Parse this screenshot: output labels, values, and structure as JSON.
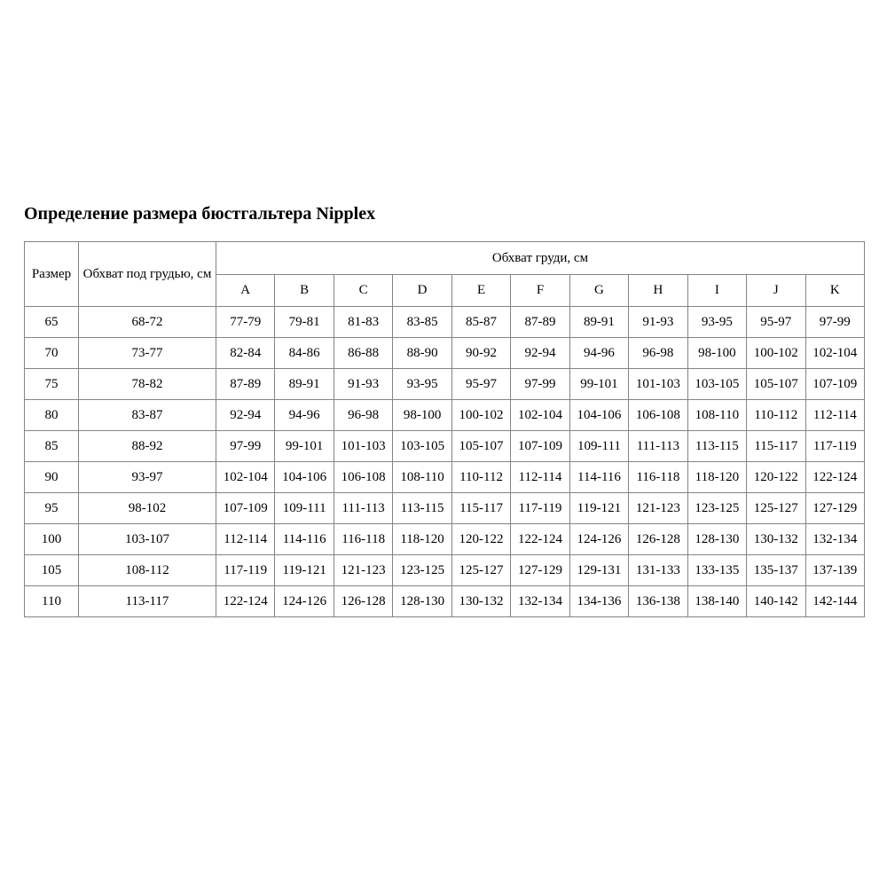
{
  "title": "Определение размера бюстгальтера Nipplex",
  "colors": {
    "background": "#ffffff",
    "border": "#848484",
    "text": "#000000"
  },
  "table": {
    "header": {
      "size_label": "Размер",
      "underbust_label": "Обхват под грудью, см",
      "bust_label": "Обхват груди, см",
      "cup_labels": [
        "A",
        "B",
        "C",
        "D",
        "E",
        "F",
        "G",
        "H",
        "I",
        "J",
        "K"
      ]
    },
    "rows": [
      {
        "size": "65",
        "underbust": "68-72",
        "cups": [
          "77-79",
          "79-81",
          "81-83",
          "83-85",
          "85-87",
          "87-89",
          "89-91",
          "91-93",
          "93-95",
          "95-97",
          "97-99"
        ]
      },
      {
        "size": "70",
        "underbust": "73-77",
        "cups": [
          "82-84",
          "84-86",
          "86-88",
          "88-90",
          "90-92",
          "92-94",
          "94-96",
          "96-98",
          "98-100",
          "100-102",
          "102-104"
        ]
      },
      {
        "size": "75",
        "underbust": "78-82",
        "cups": [
          "87-89",
          "89-91",
          "91-93",
          "93-95",
          "95-97",
          "97-99",
          "99-101",
          "101-103",
          "103-105",
          "105-107",
          "107-109"
        ]
      },
      {
        "size": "80",
        "underbust": "83-87",
        "cups": [
          "92-94",
          "94-96",
          "96-98",
          "98-100",
          "100-102",
          "102-104",
          "104-106",
          "106-108",
          "108-110",
          "110-112",
          "112-114"
        ]
      },
      {
        "size": "85",
        "underbust": "88-92",
        "cups": [
          "97-99",
          "99-101",
          "101-103",
          "103-105",
          "105-107",
          "107-109",
          "109-111",
          "111-113",
          "113-115",
          "115-117",
          "117-119"
        ]
      },
      {
        "size": "90",
        "underbust": "93-97",
        "cups": [
          "102-104",
          "104-106",
          "106-108",
          "108-110",
          "110-112",
          "112-114",
          "114-116",
          "116-118",
          "118-120",
          "120-122",
          "122-124"
        ]
      },
      {
        "size": "95",
        "underbust": "98-102",
        "cups": [
          "107-109",
          "109-111",
          "111-113",
          "113-115",
          "115-117",
          "117-119",
          "119-121",
          "121-123",
          "123-125",
          "125-127",
          "127-129"
        ]
      },
      {
        "size": "100",
        "underbust": "103-107",
        "cups": [
          "112-114",
          "114-116",
          "116-118",
          "118-120",
          "120-122",
          "122-124",
          "124-126",
          "126-128",
          "128-130",
          "130-132",
          "132-134"
        ]
      },
      {
        "size": "105",
        "underbust": "108-112",
        "cups": [
          "117-119",
          "119-121",
          "121-123",
          "123-125",
          "125-127",
          "127-129",
          "129-131",
          "131-133",
          "133-135",
          "135-137",
          "137-139"
        ]
      },
      {
        "size": "110",
        "underbust": "113-117",
        "cups": [
          "122-124",
          "124-126",
          "126-128",
          "128-130",
          "130-132",
          "132-134",
          "134-136",
          "136-138",
          "138-140",
          "140-142",
          "142-144"
        ]
      }
    ]
  }
}
